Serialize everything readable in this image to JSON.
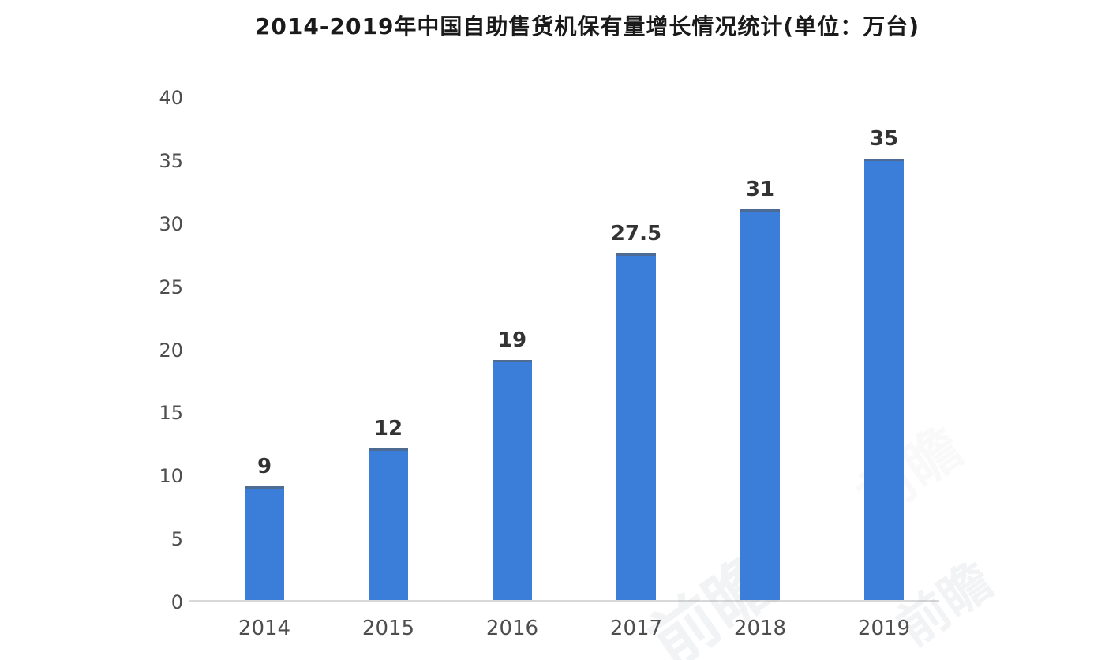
{
  "title": "2014-2019年中国自助售货机保有量增长情况统计(单位：万台)",
  "chart_data": {
    "type": "bar",
    "title": "2014-2019年中国自助售货机保有量增长情况统计(单位：万台)",
    "unit": "万台",
    "categories": [
      "2014",
      "2015",
      "2016",
      "2017",
      "2018",
      "2019"
    ],
    "values": [
      9,
      12,
      19,
      27.5,
      31,
      35
    ],
    "value_labels": [
      "9",
      "12",
      "19",
      "27.5",
      "31",
      "35"
    ],
    "xlabel": "",
    "ylabel": "",
    "ylim": [
      0,
      40
    ],
    "y_tick_step": 5,
    "y_tick_labels": [
      "40",
      "35",
      "30",
      "25",
      "20",
      "15",
      "10",
      "5",
      "0"
    ],
    "grid": false,
    "legend": "none",
    "colors": {
      "bar": "#3b7ed9",
      "bar_top_edge": "#4e6b94",
      "axis_line": "#d8d8d8",
      "title_text": "#1a1a1a",
      "value_label_text": "#333333",
      "tick_label_text": "#4d4d4d"
    }
  },
  "watermark": {
    "text": "前瞻"
  }
}
